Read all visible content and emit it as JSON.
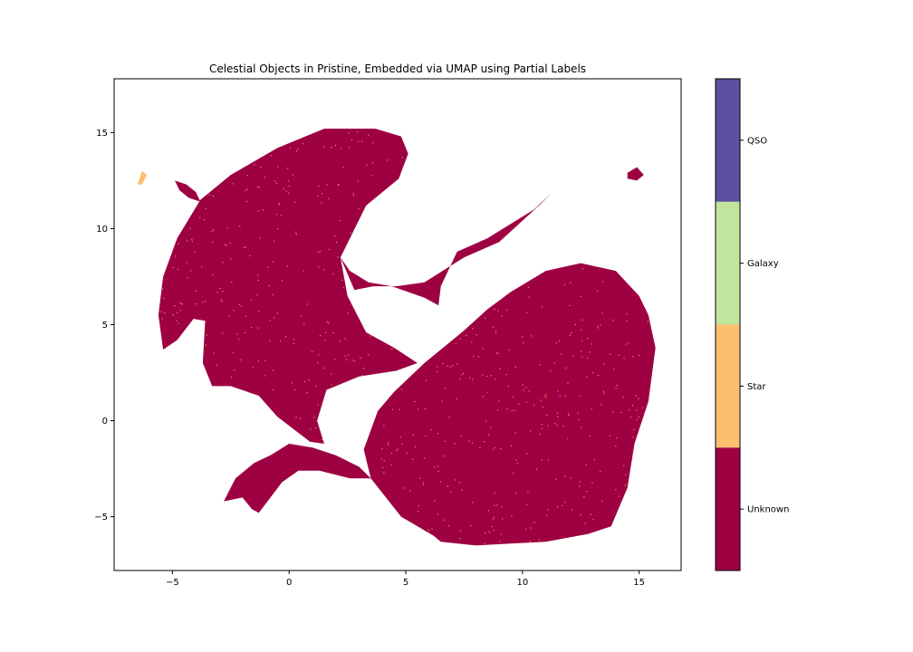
{
  "chart_data": {
    "type": "scatter",
    "title": "Celestial Objects in Pristine, Embedded via UMAP using Partial Labels",
    "xlabel": "",
    "ylabel": "",
    "xlim": [
      -7.5,
      16.8
    ],
    "ylim": [
      -7.8,
      17.8
    ],
    "xticks": [
      -5,
      0,
      5,
      10,
      15
    ],
    "xtick_labels": [
      "−5",
      "0",
      "5",
      "10",
      "15"
    ],
    "yticks": [
      -5,
      0,
      5,
      10,
      15
    ],
    "ytick_labels": [
      "−5",
      "0",
      "5",
      "10",
      "15"
    ],
    "grid": false,
    "colorbar": {
      "categories": [
        {
          "label": "Unknown",
          "color": "#9e0142"
        },
        {
          "label": "Star",
          "color": "#fdbe6f"
        },
        {
          "label": "Galaxy",
          "color": "#c1e59d"
        },
        {
          "label": "QSO",
          "color": "#5e4fa2"
        }
      ]
    },
    "clusters": [
      {
        "class": "Unknown",
        "region": "upper-left arm",
        "polygon": [
          [
            -5.6,
            5.5
          ],
          [
            -5.4,
            7.5
          ],
          [
            -4.8,
            9.5
          ],
          [
            -3.8,
            11.5
          ],
          [
            -2.5,
            12.8
          ],
          [
            -0.5,
            14.2
          ],
          [
            1.5,
            15.2
          ],
          [
            3.7,
            15.2
          ],
          [
            4.8,
            14.8
          ],
          [
            5.1,
            13.9
          ],
          [
            4.7,
            12.6
          ],
          [
            3.3,
            11.2
          ],
          [
            2.2,
            8.5
          ],
          [
            2.5,
            6.5
          ],
          [
            3.3,
            4.6
          ],
          [
            4.5,
            3.8
          ],
          [
            5.5,
            3.0
          ],
          [
            4.6,
            2.6
          ],
          [
            3.0,
            2.3
          ],
          [
            1.6,
            1.6
          ],
          [
            1.2,
            0.0
          ],
          [
            1.5,
            -1.2
          ],
          [
            0.9,
            -1.1
          ],
          [
            -0.5,
            0.2
          ],
          [
            -1.3,
            1.3
          ],
          [
            -2.5,
            1.8
          ],
          [
            -3.3,
            1.8
          ],
          [
            -3.7,
            3.0
          ],
          [
            -3.6,
            5.2
          ],
          [
            -4.1,
            5.3
          ],
          [
            -4.8,
            4.2
          ],
          [
            -5.4,
            3.7
          ]
        ]
      },
      {
        "class": "Unknown",
        "region": "lower-right lobe",
        "polygon": [
          [
            3.5,
            -3.0
          ],
          [
            3.2,
            -1.5
          ],
          [
            3.8,
            0.5
          ],
          [
            4.5,
            1.5
          ],
          [
            5.8,
            3.0
          ],
          [
            7.5,
            4.7
          ],
          [
            8.5,
            5.8
          ],
          [
            9.5,
            6.7
          ],
          [
            11.0,
            7.8
          ],
          [
            12.5,
            8.2
          ],
          [
            14.0,
            7.8
          ],
          [
            15.0,
            6.5
          ],
          [
            15.4,
            5.5
          ],
          [
            15.7,
            3.8
          ],
          [
            15.4,
            1.0
          ],
          [
            14.8,
            -1.2
          ],
          [
            14.5,
            -3.5
          ],
          [
            13.8,
            -5.5
          ],
          [
            12.8,
            -5.9
          ],
          [
            11.0,
            -6.3
          ],
          [
            9.5,
            -6.4
          ],
          [
            8.0,
            -6.5
          ],
          [
            6.5,
            -6.3
          ],
          [
            6.2,
            -6.0
          ],
          [
            4.8,
            -5.0
          ]
        ]
      },
      {
        "class": "Unknown",
        "region": "bridge",
        "polygon": [
          [
            2.2,
            8.5
          ],
          [
            2.8,
            6.8
          ],
          [
            3.6,
            7.0
          ],
          [
            4.6,
            7.0
          ],
          [
            5.8,
            7.2
          ],
          [
            7.5,
            8.5
          ],
          [
            9.0,
            9.3
          ],
          [
            10.8,
            11.3
          ],
          [
            11.2,
            11.8
          ],
          [
            10.5,
            11.0
          ],
          [
            8.5,
            9.5
          ],
          [
            7.2,
            8.8
          ],
          [
            6.5,
            7.0
          ],
          [
            6.4,
            6.0
          ],
          [
            5.8,
            6.4
          ],
          [
            4.4,
            7.0
          ],
          [
            3.4,
            7.2
          ],
          [
            2.6,
            7.8
          ]
        ]
      },
      {
        "class": "Unknown",
        "region": "lower-left arm",
        "polygon": [
          [
            -2.8,
            -4.2
          ],
          [
            -2.3,
            -3.0
          ],
          [
            -1.5,
            -2.2
          ],
          [
            -0.8,
            -1.8
          ],
          [
            0.0,
            -1.2
          ],
          [
            1.0,
            -1.4
          ],
          [
            2.0,
            -1.8
          ],
          [
            3.0,
            -2.4
          ],
          [
            3.5,
            -3.0
          ],
          [
            2.6,
            -3.0
          ],
          [
            1.3,
            -2.6
          ],
          [
            0.4,
            -2.6
          ],
          [
            -0.3,
            -3.2
          ],
          [
            -0.8,
            -4.0
          ],
          [
            -1.3,
            -4.8
          ],
          [
            -1.6,
            -4.6
          ],
          [
            -2.0,
            -4.0
          ]
        ]
      },
      {
        "class": "Unknown",
        "region": "small island left",
        "polygon": [
          [
            -4.9,
            12.5
          ],
          [
            -4.4,
            12.3
          ],
          [
            -4.0,
            11.9
          ],
          [
            -3.8,
            11.4
          ],
          [
            -4.3,
            11.6
          ],
          [
            -4.7,
            12.0
          ]
        ]
      },
      {
        "class": "Unknown",
        "region": "small island right",
        "polygon": [
          [
            14.5,
            12.9
          ],
          [
            14.9,
            13.2
          ],
          [
            15.2,
            12.8
          ],
          [
            14.9,
            12.5
          ],
          [
            14.5,
            12.6
          ]
        ]
      },
      {
        "class": "Star",
        "region": "small island far left",
        "polygon": [
          [
            -6.5,
            12.3
          ],
          [
            -6.3,
            13.0
          ],
          [
            -6.1,
            12.8
          ],
          [
            -6.3,
            12.3
          ]
        ]
      }
    ]
  }
}
